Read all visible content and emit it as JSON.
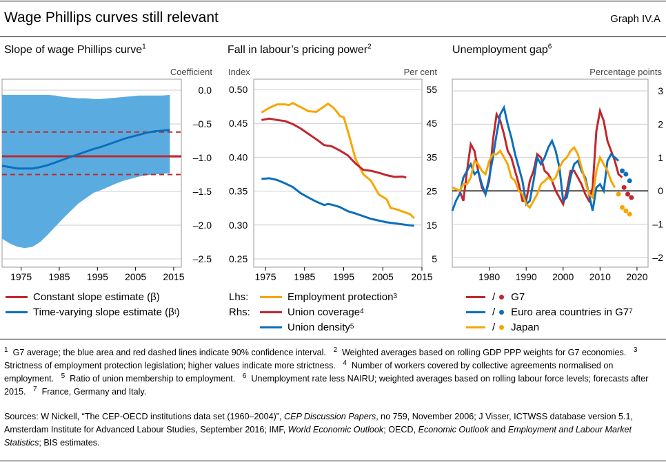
{
  "header": {
    "title": "Wage Phillips curves still relevant",
    "graph_id": "Graph IV.A"
  },
  "colors": {
    "red": "#c1272d",
    "blue": "#0a6fbd",
    "orange": "#f7a600",
    "band": "#5aace0",
    "grid": "#cccccc"
  },
  "panels": {
    "left": {
      "title": "Slope of wage Phillips curve",
      "sup": "1",
      "unit": "Coefficient"
    },
    "middle": {
      "title": "Fall in labour’s pricing power",
      "sup": "2",
      "unit_left": "Index",
      "unit_right": "Per cent"
    },
    "right": {
      "title": "Unemployment gap",
      "sup": "6",
      "unit": "Percentage points"
    }
  },
  "chart_data": [
    {
      "type": "line",
      "title": "Slope of wage Phillips curve",
      "ylabel": "Coefficient",
      "xlim": [
        1970,
        2017
      ],
      "ylim": [
        -2.5,
        0.0
      ],
      "xticks": [
        1975,
        1985,
        1995,
        2005,
        2015
      ],
      "yticks": [
        0.0,
        -0.5,
        -1.0,
        -1.5,
        -2.0,
        -2.5
      ],
      "ytick_labels": [
        "0.0",
        "–0.5",
        "–1.0",
        "–1.5",
        "–2.0",
        "–2.5"
      ],
      "x": [
        1970,
        1972,
        1974,
        1976,
        1978,
        1980,
        1982,
        1984,
        1986,
        1988,
        1990,
        1992,
        1994,
        1996,
        1998,
        2000,
        2002,
        2004,
        2006,
        2008,
        2010,
        2012,
        2014
      ],
      "band_upper": [
        -0.07,
        -0.07,
        -0.07,
        -0.07,
        -0.07,
        -0.07,
        -0.07,
        -0.08,
        -0.1,
        -0.11,
        -0.12,
        -0.12,
        -0.13,
        -0.13,
        -0.12,
        -0.11,
        -0.1,
        -0.09,
        -0.08,
        -0.08,
        -0.08,
        -0.08,
        -0.07
      ],
      "band_lower": [
        -2.2,
        -2.27,
        -2.32,
        -2.34,
        -2.32,
        -2.25,
        -2.14,
        -2.02,
        -1.9,
        -1.79,
        -1.68,
        -1.6,
        -1.52,
        -1.48,
        -1.43,
        -1.38,
        -1.34,
        -1.31,
        -1.28,
        -1.26,
        -1.25,
        -1.24,
        -1.23
      ],
      "series": [
        {
          "name": "Constant slope estimate (β)",
          "color": "#c1272d",
          "constant": -0.98,
          "ci": [
            -0.62,
            -1.25
          ]
        },
        {
          "name": "Time-varying slope estimate (βt)",
          "color": "#0a6fbd",
          "values": [
            -1.12,
            -1.14,
            -1.16,
            -1.16,
            -1.16,
            -1.14,
            -1.11,
            -1.07,
            -1.03,
            -0.99,
            -0.95,
            -0.91,
            -0.87,
            -0.84,
            -0.8,
            -0.76,
            -0.72,
            -0.69,
            -0.66,
            -0.63,
            -0.61,
            -0.6,
            -0.59
          ]
        }
      ]
    },
    {
      "type": "line",
      "title": "Fall in labour’s pricing power",
      "ylabel_left": "Index",
      "ylabel_right": "Per cent",
      "xlim": [
        1972,
        2015
      ],
      "ylim_left": [
        0.25,
        0.5
      ],
      "ylim_right": [
        5,
        55
      ],
      "xticks": [
        1975,
        1985,
        1995,
        2005,
        2015
      ],
      "yticks_left": [
        0.25,
        0.3,
        0.35,
        0.4,
        0.45,
        0.5
      ],
      "ytick_labels_left": [
        "0.25",
        "0.30",
        "0.35",
        "0.40",
        "0.45",
        "0.50"
      ],
      "yticks_right": [
        5,
        15,
        25,
        35,
        45,
        55
      ],
      "series": [
        {
          "name": "Employment protection",
          "sup": "3",
          "axis": "left",
          "color": "#f7a600",
          "x": [
            1974,
            1976,
            1978,
            1980,
            1981,
            1982,
            1984,
            1986,
            1988,
            1990,
            1991,
            1992,
            1993,
            1994,
            1995,
            1996,
            1998,
            2000,
            2002,
            2004,
            2006,
            2007,
            2008,
            2010,
            2012,
            2013
          ],
          "values": [
            0.466,
            0.473,
            0.478,
            0.478,
            0.477,
            0.48,
            0.474,
            0.468,
            0.467,
            0.475,
            0.479,
            0.475,
            0.469,
            0.461,
            0.459,
            0.44,
            0.398,
            0.375,
            0.365,
            0.345,
            0.338,
            0.325,
            0.324,
            0.32,
            0.316,
            0.31
          ]
        },
        {
          "name": "Union coverage",
          "sup": "4",
          "axis": "right",
          "color": "#c1272d",
          "x": [
            1974,
            1976,
            1978,
            1980,
            1982,
            1984,
            1986,
            1988,
            1990,
            1992,
            1994,
            1996,
            1998,
            2000,
            2002,
            2004,
            2006,
            2008,
            2010,
            2011
          ],
          "values": [
            46.0,
            46.4,
            46.0,
            45.7,
            44.8,
            43.5,
            41.9,
            40.3,
            38.6,
            38.2,
            37.0,
            35.6,
            33.2,
            31.3,
            31.0,
            30.4,
            29.7,
            29.2,
            29.3,
            29.0
          ]
        },
        {
          "name": "Union density",
          "sup": "5",
          "axis": "right",
          "color": "#0a6fbd",
          "x": [
            1974,
            1976,
            1978,
            1980,
            1982,
            1984,
            1986,
            1988,
            1990,
            1991,
            1992,
            1994,
            1996,
            1998,
            2000,
            2002,
            2004,
            2006,
            2008,
            2010,
            2012,
            2013
          ],
          "values": [
            28.6,
            28.8,
            28.3,
            27.3,
            26.2,
            24.4,
            23.1,
            21.9,
            20.9,
            21.2,
            21.0,
            20.3,
            19.1,
            18.4,
            17.6,
            16.8,
            16.3,
            15.8,
            15.5,
            15.2,
            14.9,
            14.8
          ]
        }
      ]
    },
    {
      "type": "line",
      "title": "Unemployment gap",
      "ylabel": "Percentage points",
      "xlim": [
        1970,
        2023
      ],
      "ylim": [
        -2,
        3
      ],
      "xticks": [
        1980,
        1990,
        2000,
        2010,
        2020
      ],
      "yticks": [
        3,
        2,
        1,
        0,
        -1,
        -2
      ],
      "ytick_labels": [
        "3",
        "2",
        "1",
        "0",
        "–1",
        "–2"
      ],
      "forecast_after": 2015,
      "series": [
        {
          "name": "G7",
          "color": "#c1272d",
          "x": [
            1970,
            1972,
            1973,
            1974,
            1975,
            1976,
            1977,
            1978,
            1979,
            1980,
            1981,
            1982,
            1983,
            1984,
            1985,
            1986,
            1987,
            1988,
            1989,
            1990,
            1991,
            1992,
            1993,
            1994,
            1995,
            1996,
            1997,
            1998,
            1999,
            2000,
            2001,
            2002,
            2003,
            2004,
            2005,
            2006,
            2007,
            2008,
            2009,
            2010,
            2011,
            2012,
            2013,
            2014,
            2015,
            2016
          ],
          "values": [
            0.1,
            0.0,
            -0.3,
            0.6,
            1.4,
            1.2,
            0.6,
            0.1,
            -0.1,
            0.3,
            1.5,
            2.3,
            2.1,
            1.7,
            1.2,
            1.0,
            0.6,
            0.2,
            -0.3,
            -0.3,
            0.3,
            0.6,
            1.1,
            1.0,
            0.6,
            0.5,
            0.3,
            0.0,
            -0.2,
            -0.4,
            0.0,
            0.6,
            0.6,
            0.4,
            0.2,
            -0.1,
            -0.3,
            0.1,
            1.8,
            2.4,
            2.1,
            1.5,
            1.2,
            0.9,
            0.5,
            0.4
          ],
          "forecast_x": [
            2016.5,
            2017.5,
            2018.5
          ],
          "forecast_values": [
            0.1,
            -0.1,
            -0.2
          ]
        },
        {
          "name": "Euro area countries in G7",
          "sup": "7",
          "color": "#0a6fbd",
          "x": [
            1970,
            1971,
            1972,
            1973,
            1974,
            1975,
            1976,
            1977,
            1978,
            1979,
            1980,
            1981,
            1982,
            1983,
            1984,
            1985,
            1986,
            1987,
            1988,
            1989,
            1990,
            1991,
            1992,
            1993,
            1994,
            1995,
            1996,
            1997,
            1998,
            1999,
            2000,
            2001,
            2002,
            2003,
            2004,
            2005,
            2006,
            2007,
            2008,
            2009,
            2010,
            2011,
            2012,
            2013,
            2014,
            2015
          ],
          "values": [
            -0.6,
            -0.3,
            -0.1,
            0.4,
            0.6,
            0.8,
            0.5,
            0.6,
            0.2,
            -0.1,
            0.4,
            1.0,
            1.7,
            2.3,
            2.5,
            2.0,
            1.6,
            1.1,
            0.7,
            0.3,
            -0.4,
            -0.3,
            0.3,
            1.0,
            0.8,
            1.0,
            1.3,
            1.5,
            1.2,
            0.7,
            -0.3,
            -0.2,
            0.4,
            0.8,
            0.9,
            0.6,
            0.4,
            -0.1,
            -0.6,
            0.1,
            0.2,
            0.0,
            0.9,
            1.1,
            1.0,
            0.9
          ],
          "forecast_x": [
            2016,
            2017,
            2018
          ],
          "forecast_values": [
            0.6,
            0.5,
            0.3
          ]
        },
        {
          "name": "Japan",
          "color": "#f7a600",
          "x": [
            1970,
            1972,
            1973,
            1974,
            1975,
            1976,
            1977,
            1978,
            1979,
            1980,
            1981,
            1982,
            1983,
            1984,
            1985,
            1986,
            1987,
            1988,
            1989,
            1990,
            1991,
            1992,
            1993,
            1994,
            1995,
            1996,
            1997,
            1998,
            1999,
            2000,
            2001,
            2002,
            2003,
            2004,
            2005,
            2006,
            2007,
            2008,
            2009,
            2010,
            2011,
            2012,
            2013,
            2014
          ],
          "values": [
            0.1,
            0.0,
            0.2,
            0.2,
            0.4,
            0.9,
            0.8,
            0.6,
            0.5,
            0.9,
            1.1,
            1.1,
            1.2,
            1.0,
            0.8,
            0.4,
            0.3,
            0.0,
            -0.1,
            -0.4,
            -0.5,
            -0.3,
            -0.1,
            0.2,
            0.3,
            0.4,
            0.3,
            0.4,
            0.7,
            0.9,
            1.0,
            1.2,
            1.3,
            1.1,
            0.7,
            0.3,
            -0.1,
            -0.2,
            0.6,
            1.0,
            0.8,
            0.6,
            0.3,
            0.1
          ],
          "forecast_x": [
            2015,
            2016,
            2017,
            2018
          ],
          "forecast_values": [
            -0.1,
            -0.5,
            -0.6,
            -0.7
          ]
        }
      ]
    }
  ],
  "legends": {
    "left": [
      {
        "label": "Constant slope estimate (β)",
        "color": "#c1272d"
      },
      {
        "label": "Time-varying slope estimate (β",
        "sub": "t",
        "tail": ")",
        "color": "#0a6fbd"
      }
    ],
    "middle": [
      {
        "prefix": "Lhs:",
        "label": "Employment protection",
        "sup": "3",
        "color": "#f7a600"
      },
      {
        "prefix": "Rhs:",
        "label": "Union coverage",
        "sup": "4",
        "color": "#c1272d"
      },
      {
        "prefix": "",
        "label": "Union density",
        "sup": "5",
        "color": "#0a6fbd"
      }
    ],
    "right": [
      {
        "slash": "/",
        "label": "G7",
        "color": "#c1272d"
      },
      {
        "slash": "/",
        "label": "Euro area countries in G7",
        "sup": "7",
        "color": "#0a6fbd"
      },
      {
        "slash": "/",
        "label": "Japan",
        "color": "#f7a600"
      }
    ]
  },
  "footnotes": [
    {
      "n": "1",
      "text": "G7 average; the blue area and red dashed lines indicate 90% confidence interval."
    },
    {
      "n": "2",
      "text": "Weighted averages based on rolling GDP PPP weights for G7 economies."
    },
    {
      "n": "3",
      "text": "Strictness of employment protection legislation; higher values indicate more strictness."
    },
    {
      "n": "4",
      "text": "Number of workers covered by collective agreements normalised on employment."
    },
    {
      "n": "5",
      "text": "Ratio of union membership to employment."
    },
    {
      "n": "6",
      "text": "Unemployment rate less NAIRU; weighted averages based on rolling labour force levels; forecasts after 2015."
    },
    {
      "n": "7",
      "text": "France, Germany and Italy."
    }
  ],
  "sources": {
    "prefix": "Sources: W Nickell, “The CEP-OECD institutions data set (1960–2004)”, ",
    "it1": "CEP Discussion Papers",
    "mid1": ", no 759, November 2006; J Visser, ICTWSS database version 5.1, Amsterdam Institute for Advanced Labour Studies, September 2016; IMF, ",
    "it2": "World Economic Outlook",
    "mid2": "; OECD, ",
    "it3": "Economic Outlook",
    "mid3": " and ",
    "it4": "Employment and Labour Market Statistics",
    "suffix": "; BIS estimates."
  }
}
